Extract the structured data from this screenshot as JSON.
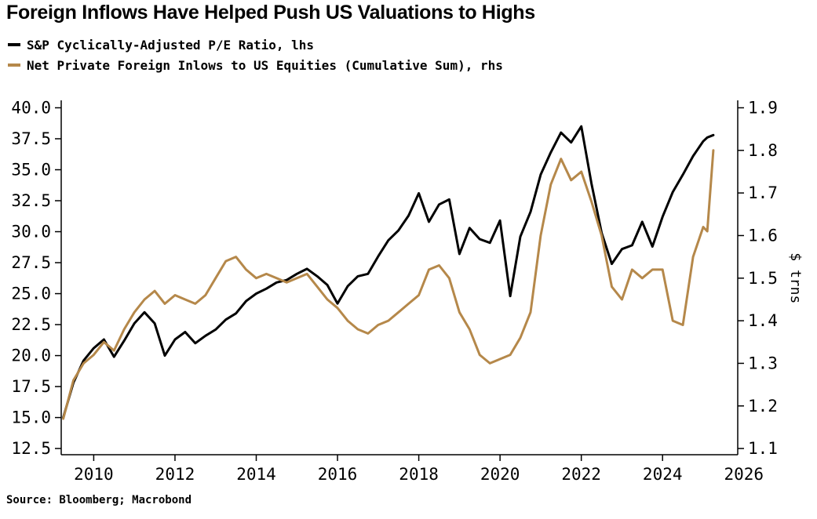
{
  "title": "Foreign Inflows Have Helped Push US Valuations to Highs",
  "source": "Source: Bloomberg; Macrobond",
  "chart_data": {
    "type": "line",
    "title": "Foreign Inflows Have Helped Push US Valuations to Highs",
    "legend_position": "top-left",
    "grid": false,
    "x_axis": {
      "ticks": [
        2010,
        2012,
        2014,
        2016,
        2018,
        2020,
        2022,
        2024,
        2026
      ],
      "range": [
        2009.2,
        2025.85
      ]
    },
    "left_axis": {
      "ticks": [
        12.5,
        15.0,
        17.5,
        20.0,
        22.5,
        25.0,
        27.5,
        30.0,
        32.5,
        35.0,
        37.5,
        40.0
      ],
      "range": [
        12.5,
        40.0
      ]
    },
    "right_axis": {
      "label": "$ trns",
      "ticks": [
        1.1,
        1.2,
        1.3,
        1.4,
        1.5,
        1.6,
        1.7,
        1.8,
        1.9
      ],
      "range": [
        1.1,
        1.9
      ]
    },
    "x": [
      2009.25,
      2009.5,
      2009.75,
      2010.0,
      2010.25,
      2010.5,
      2010.75,
      2011.0,
      2011.25,
      2011.5,
      2011.75,
      2012.0,
      2012.25,
      2012.5,
      2012.75,
      2013.0,
      2013.25,
      2013.5,
      2013.75,
      2014.0,
      2014.25,
      2014.5,
      2014.75,
      2015.0,
      2015.25,
      2015.5,
      2015.75,
      2016.0,
      2016.25,
      2016.5,
      2016.75,
      2017.0,
      2017.25,
      2017.5,
      2017.75,
      2018.0,
      2018.25,
      2018.5,
      2018.75,
      2019.0,
      2019.25,
      2019.5,
      2019.75,
      2020.0,
      2020.25,
      2020.5,
      2020.75,
      2021.0,
      2021.25,
      2021.5,
      2021.75,
      2022.0,
      2022.25,
      2022.5,
      2022.75,
      2023.0,
      2023.25,
      2023.5,
      2023.75,
      2024.0,
      2024.25,
      2024.5,
      2024.75,
      2025.0,
      2025.1,
      2025.25
    ],
    "series": [
      {
        "key": "cape",
        "name": "S&P Cyclically-Adjusted P/E Ratio, lhs",
        "axis": "left",
        "color": "#000000",
        "values": [
          15.0,
          17.8,
          19.6,
          20.6,
          21.3,
          19.9,
          21.2,
          22.6,
          23.5,
          22.6,
          20.0,
          21.3,
          21.9,
          21.0,
          21.6,
          22.1,
          22.9,
          23.4,
          24.4,
          25.0,
          25.4,
          25.9,
          26.1,
          26.6,
          27.0,
          26.4,
          25.7,
          24.2,
          25.6,
          26.4,
          26.6,
          28.0,
          29.3,
          30.1,
          31.3,
          33.1,
          30.8,
          32.2,
          32.6,
          28.2,
          30.3,
          29.4,
          29.1,
          30.9,
          24.8,
          29.6,
          31.6,
          34.6,
          36.4,
          38.0,
          37.2,
          38.5,
          33.9,
          29.9,
          27.4,
          28.6,
          28.9,
          30.8,
          28.8,
          31.2,
          33.2,
          34.6,
          36.1,
          37.3,
          37.6,
          37.8
        ]
      },
      {
        "key": "inflows",
        "name": "Net Private Foreign Inlows to US Equities (Cumulative Sum), rhs",
        "axis": "right",
        "color": "#b5884a",
        "values": [
          1.17,
          1.26,
          1.3,
          1.32,
          1.35,
          1.33,
          1.38,
          1.42,
          1.45,
          1.47,
          1.44,
          1.46,
          1.45,
          1.44,
          1.46,
          1.5,
          1.54,
          1.55,
          1.52,
          1.5,
          1.51,
          1.5,
          1.49,
          1.5,
          1.51,
          1.48,
          1.45,
          1.43,
          1.4,
          1.38,
          1.37,
          1.39,
          1.4,
          1.42,
          1.44,
          1.46,
          1.52,
          1.53,
          1.5,
          1.42,
          1.38,
          1.32,
          1.3,
          1.31,
          1.32,
          1.36,
          1.42,
          1.6,
          1.72,
          1.78,
          1.73,
          1.75,
          1.68,
          1.6,
          1.48,
          1.45,
          1.52,
          1.5,
          1.52,
          1.52,
          1.4,
          1.39,
          1.55,
          1.62,
          1.61,
          1.8
        ]
      }
    ]
  }
}
